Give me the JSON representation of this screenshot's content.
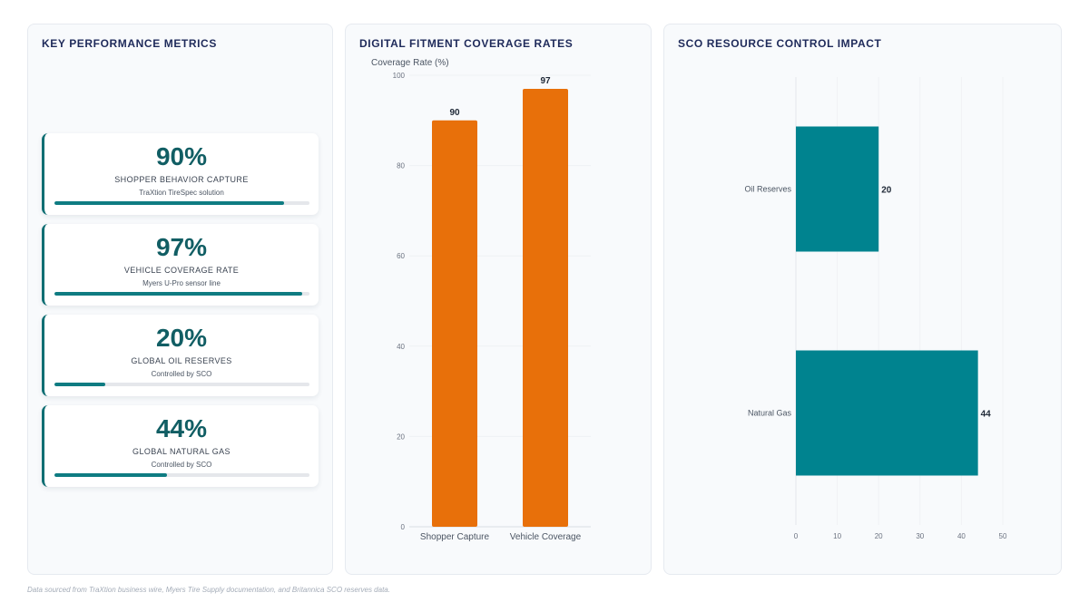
{
  "kpi_panel": {
    "title": "KEY PERFORMANCE METRICS",
    "cards": [
      {
        "value_text": "90%",
        "label": "SHOPPER BEHAVIOR CAPTURE",
        "sub": "TraXtion TireSpec solution",
        "progress_pct": 90
      },
      {
        "value_text": "97%",
        "label": "VEHICLE COVERAGE RATE",
        "sub": "Myers U-Pro sensor line",
        "progress_pct": 97
      },
      {
        "value_text": "20%",
        "label": "GLOBAL OIL RESERVES",
        "sub": "Controlled by SCO",
        "progress_pct": 20
      },
      {
        "value_text": "44%",
        "label": "GLOBAL NATURAL GAS",
        "sub": "Controlled by SCO",
        "progress_pct": 44
      }
    ],
    "accent_color": "#0f7c82"
  },
  "coverage_panel": {
    "title": "DIGITAL FITMENT COVERAGE RATES"
  },
  "sco_panel": {
    "title": "SCO RESOURCE CONTROL IMPACT"
  },
  "chart_data": [
    {
      "type": "bar",
      "orientation": "vertical",
      "title": "DIGITAL FITMENT COVERAGE RATES",
      "ylabel": "Coverage Rate (%)",
      "categories": [
        "Shopper Capture",
        "Vehicle Coverage"
      ],
      "values": [
        90,
        97
      ],
      "data_labels": [
        "90",
        "97"
      ],
      "ylim": [
        0,
        100
      ],
      "y_ticks": [
        0,
        20,
        40,
        60,
        80,
        100
      ],
      "color": "#e8700a",
      "grid": true
    },
    {
      "type": "bar",
      "orientation": "horizontal",
      "title": "SCO RESOURCE CONTROL IMPACT",
      "categories": [
        "Oil Reserves",
        "Natural Gas"
      ],
      "values": [
        20,
        44
      ],
      "data_labels": [
        "20",
        "44"
      ],
      "xlim": [
        0,
        50
      ],
      "x_ticks": [
        0,
        10,
        20,
        30,
        40,
        50
      ],
      "color": "#00838f",
      "grid": true
    }
  ],
  "footnote": "Data sourced from TraXtion business wire, Myers Tire Supply documentation, and Britannica SCO reserves data."
}
